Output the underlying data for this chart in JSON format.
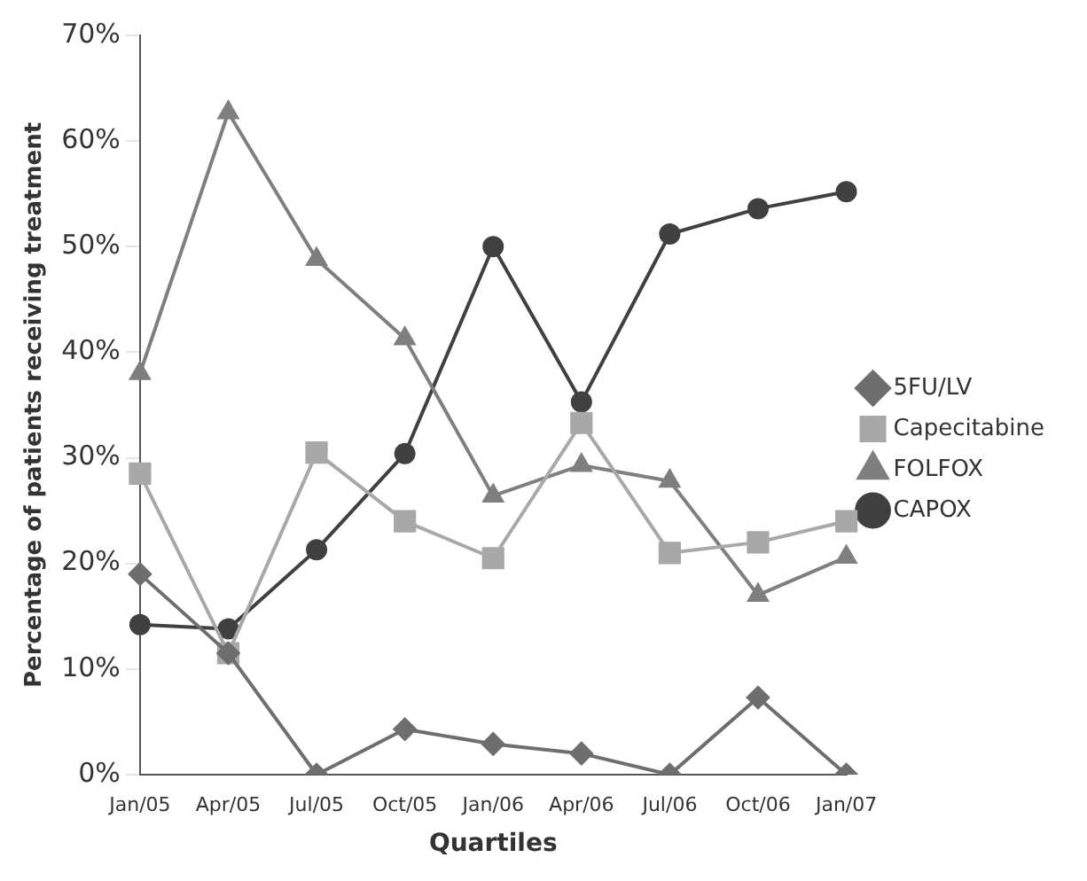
{
  "chart_data": {
    "type": "line",
    "xlabel": "Quartiles",
    "ylabel": "Percentage of patients receiving treatment",
    "categories": [
      "Jan/05",
      "Apr/05",
      "Jul/05",
      "Oct/05",
      "Jan/06",
      "Apr/06",
      "Jul/06",
      "Oct/06",
      "Jan/07"
    ],
    "series": [
      {
        "name": "5FU/LV",
        "color": "#6e6e6e",
        "marker": "diamond",
        "values": [
          19,
          11.5,
          0,
          4.3,
          2.9,
          2,
          0,
          7.3,
          0
        ]
      },
      {
        "name": "Capecitabine",
        "color": "#a8a8a8",
        "marker": "square",
        "values": [
          28.5,
          11.5,
          30.5,
          24,
          20.5,
          33.3,
          21,
          22,
          24
        ]
      },
      {
        "name": "FOLFOX",
        "color": "#7f7f7f",
        "marker": "triangle",
        "values": [
          38,
          62.7,
          48.8,
          41.3,
          26.4,
          29.3,
          27.8,
          17,
          20.6
        ]
      },
      {
        "name": "CAPOX",
        "color": "#404040",
        "marker": "circle",
        "values": [
          14.2,
          13.8,
          21.3,
          30.4,
          50,
          35.3,
          51.2,
          53.6,
          55.2
        ]
      }
    ],
    "ylim": [
      0,
      70
    ],
    "yticks": [
      {
        "value": 0,
        "label": "0%"
      },
      {
        "value": 10,
        "label": "10%"
      },
      {
        "value": 20,
        "label": "20%"
      },
      {
        "value": 30,
        "label": "30%"
      },
      {
        "value": 40,
        "label": "40%"
      },
      {
        "value": 50,
        "label": "50%"
      },
      {
        "value": 60,
        "label": "60%"
      },
      {
        "value": 70,
        "label": "70%"
      }
    ],
    "grid": false,
    "legend": "right",
    "line_style": "solid"
  }
}
